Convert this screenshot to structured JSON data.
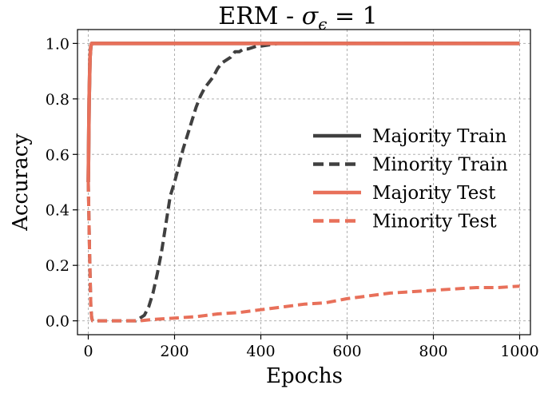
{
  "chart_data": {
    "type": "line",
    "title_prefix": "ERM - ",
    "title_symbol": "σ",
    "title_subscript": "ϵ",
    "title_suffix": " = 1",
    "xlabel": "Epochs",
    "ylabel": "Accuracy",
    "xlim": [
      -25,
      1025
    ],
    "ylim": [
      -0.05,
      1.05
    ],
    "xticks": [
      0,
      200,
      400,
      600,
      800,
      1000
    ],
    "yticks": [
      0.0,
      0.2,
      0.4,
      0.6,
      0.8,
      1.0
    ],
    "xtick_labels": [
      "0",
      "200",
      "400",
      "600",
      "800",
      "1000"
    ],
    "ytick_labels": [
      "0.0",
      "0.2",
      "0.4",
      "0.6",
      "0.8",
      "1.0"
    ],
    "grid": true,
    "legend_position": "center-right",
    "series": [
      {
        "name": "Majority Train",
        "color": "#404040",
        "dash": "solid",
        "x": [
          0,
          2,
          4,
          6,
          8,
          10,
          15,
          1000
        ],
        "y": [
          0.5,
          0.8,
          0.95,
          0.99,
          1.0,
          1.0,
          1.0,
          1.0
        ]
      },
      {
        "name": "Minority Train",
        "color": "#404040",
        "dash": "dashed",
        "x": [
          0,
          3,
          6,
          8,
          10,
          100,
          110,
          120,
          130,
          140,
          150,
          160,
          170,
          180,
          190,
          200,
          210,
          220,
          230,
          240,
          250,
          260,
          270,
          280,
          290,
          300,
          310,
          320,
          330,
          340,
          350,
          360,
          370,
          380,
          390,
          400,
          420,
          440,
          460,
          500,
          600,
          700,
          800,
          900,
          1000
        ],
        "y": [
          0.5,
          0.25,
          0.05,
          0.01,
          0.0,
          0.0,
          0.0,
          0.01,
          0.02,
          0.05,
          0.1,
          0.17,
          0.25,
          0.35,
          0.45,
          0.5,
          0.56,
          0.62,
          0.67,
          0.72,
          0.77,
          0.81,
          0.84,
          0.86,
          0.88,
          0.91,
          0.93,
          0.94,
          0.95,
          0.97,
          0.97,
          0.98,
          0.98,
          0.985,
          0.99,
          0.99,
          0.995,
          1.0,
          1.0,
          1.0,
          1.0,
          1.0,
          1.0,
          1.0,
          1.0
        ]
      },
      {
        "name": "Majority Test",
        "color": "#e8705a",
        "dash": "solid",
        "x": [
          0,
          2,
          4,
          6,
          8,
          10,
          15,
          1000
        ],
        "y": [
          0.5,
          0.8,
          0.95,
          0.99,
          1.0,
          1.0,
          1.0,
          1.0
        ]
      },
      {
        "name": "Minority Test",
        "color": "#e8705a",
        "dash": "dashed",
        "x": [
          0,
          3,
          6,
          8,
          10,
          100,
          120,
          150,
          200,
          250,
          300,
          350,
          400,
          450,
          500,
          550,
          600,
          650,
          700,
          750,
          800,
          850,
          900,
          950,
          1000
        ],
        "y": [
          0.5,
          0.25,
          0.05,
          0.01,
          0.0,
          0.0,
          0.0,
          0.005,
          0.01,
          0.015,
          0.025,
          0.03,
          0.04,
          0.05,
          0.06,
          0.065,
          0.08,
          0.09,
          0.1,
          0.105,
          0.11,
          0.115,
          0.12,
          0.12,
          0.125
        ]
      }
    ]
  }
}
